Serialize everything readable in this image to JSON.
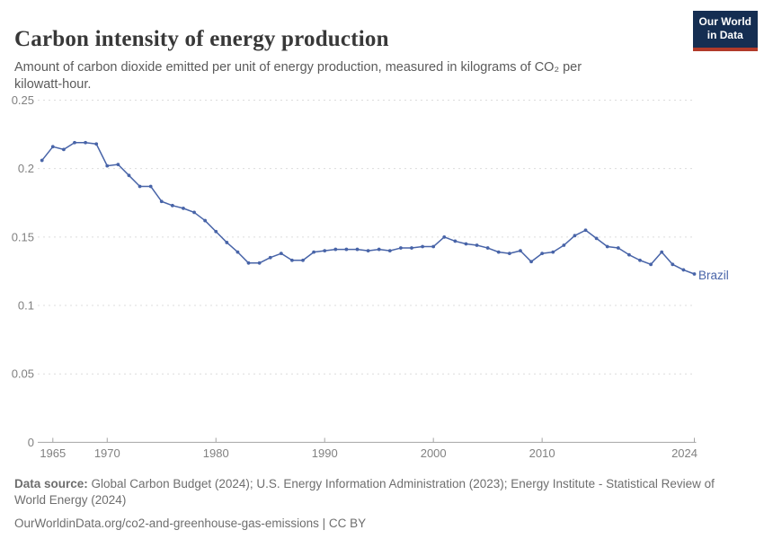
{
  "header": {
    "title": "Carbon intensity of energy production",
    "subtitle": "Amount of carbon dioxide emitted per unit of energy production, measured in kilograms of CO₂ per kilowatt-hour.",
    "logo": {
      "line1": "Our World",
      "line2": "in Data"
    }
  },
  "chart_data": {
    "type": "line",
    "title": "Carbon intensity of energy production",
    "ylabel": "kilograms of CO2 per kilowatt-hour",
    "xlim": [
      1964,
      2024
    ],
    "ylim": [
      0,
      0.25
    ],
    "y_ticks": [
      0,
      0.05,
      0.1,
      0.15,
      0.2,
      0.25
    ],
    "y_tick_labels": [
      "0",
      "0.05",
      "0.1",
      "0.15",
      "0.2",
      "0.25"
    ],
    "x_ticks": [
      1965,
      1970,
      1980,
      1990,
      2000,
      2010,
      2024
    ],
    "grid": "horizontal dashed gridlines, solid bottom axis with upward ticks",
    "legend_position": "entity label at end of line",
    "x": [
      1964,
      1965,
      1966,
      1967,
      1968,
      1969,
      1970,
      1971,
      1972,
      1973,
      1974,
      1975,
      1976,
      1977,
      1978,
      1979,
      1980,
      1981,
      1982,
      1983,
      1984,
      1985,
      1986,
      1987,
      1988,
      1989,
      1990,
      1991,
      1992,
      1993,
      1994,
      1995,
      1996,
      1997,
      1998,
      1999,
      2000,
      2001,
      2002,
      2003,
      2004,
      2005,
      2006,
      2007,
      2008,
      2009,
      2010,
      2011,
      2012,
      2013,
      2014,
      2015,
      2016,
      2017,
      2018,
      2019,
      2020,
      2021,
      2022,
      2023,
      2024
    ],
    "series": [
      {
        "name": "Brazil",
        "color": "#4864a8",
        "values": [
          0.206,
          0.216,
          0.214,
          0.219,
          0.219,
          0.218,
          0.202,
          0.203,
          0.195,
          0.187,
          0.187,
          0.176,
          0.173,
          0.171,
          0.168,
          0.162,
          0.154,
          0.146,
          0.139,
          0.131,
          0.131,
          0.135,
          0.138,
          0.133,
          0.133,
          0.139,
          0.14,
          0.141,
          0.141,
          0.141,
          0.14,
          0.141,
          0.14,
          0.142,
          0.142,
          0.143,
          0.143,
          0.15,
          0.147,
          0.145,
          0.144,
          0.142,
          0.139,
          0.138,
          0.14,
          0.132,
          0.138,
          0.139,
          0.144,
          0.151,
          0.155,
          0.149,
          0.143,
          0.142,
          0.137,
          0.133,
          0.13,
          0.139,
          0.13,
          0.126,
          0.123
        ]
      }
    ]
  },
  "footer": {
    "datasource_label": "Data source:",
    "datasource_text": " Global Carbon Budget (2024); U.S. Energy Information Administration (2023); Energy Institute - Statistical Review of World Energy (2024)",
    "link_url": "OurWorldinData.org/co2-and-greenhouse-gas-emissions",
    "license_suffix": " | CC BY"
  },
  "colors": {
    "line": "#4864a8",
    "grid": "#dcdcdc",
    "axis": "#a5a5a5",
    "tick_label": "#818181",
    "title": "#383838",
    "subtitle": "#5b5b5b",
    "footer": "#6e6e6e",
    "logo_bg": "#152e52",
    "logo_bar": "#b13a2a"
  }
}
